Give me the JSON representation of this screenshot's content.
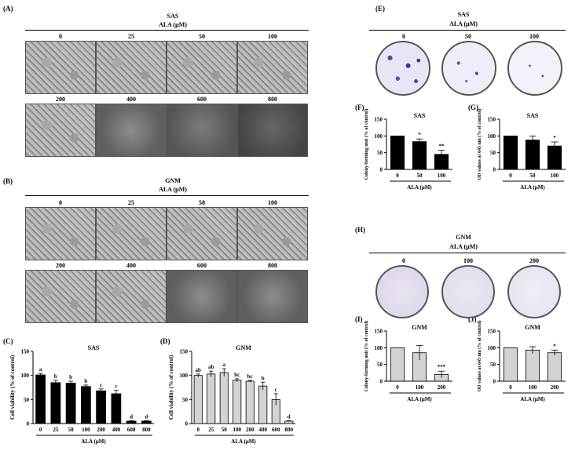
{
  "panels": {
    "A": "(A)",
    "B": "(B)",
    "C": "(C)",
    "D": "(D)",
    "E": "(E)",
    "F": "(F)",
    "G": "(G)",
    "H": "(H)",
    "I": "(I)",
    "J": "(J)"
  },
  "micro": {
    "A": {
      "title": "SAS",
      "subtitle": "ALA (μM)",
      "row1": [
        "0",
        "25",
        "50",
        "100"
      ],
      "row2": [
        "200",
        "400",
        "600",
        "800"
      ]
    },
    "B": {
      "title": "GNM",
      "subtitle": "ALA (μM)",
      "row1": [
        "0",
        "25",
        "50",
        "100"
      ],
      "row2": [
        "200",
        "400",
        "600",
        "800"
      ]
    }
  },
  "colony": {
    "E": {
      "title": "SAS",
      "subtitle": "ALA (μM)",
      "labels": [
        "0",
        "50",
        "100"
      ]
    },
    "H": {
      "title": "GNM",
      "subtitle": "ALA (μM)",
      "labels": [
        "0",
        "100",
        "200"
      ]
    }
  },
  "chart_data": [
    {
      "id": "C",
      "type": "bar",
      "title": "SAS",
      "ylabel": "Cell viability (% of control)",
      "xlabel": "ALA (μM)",
      "categories": [
        "0",
        "25",
        "50",
        "100",
        "200",
        "400",
        "600",
        "800"
      ],
      "values": [
        101,
        85,
        84,
        77,
        68,
        62,
        5,
        5
      ],
      "errors": [
        3,
        5,
        4,
        3,
        4,
        7,
        1,
        1
      ],
      "letters": [
        "a",
        "b",
        "b",
        "b",
        "c",
        "c",
        "d",
        "d"
      ],
      "ylim": [
        0,
        150
      ],
      "yticks": [
        "0",
        "50",
        "100",
        "150"
      ],
      "fill": "#000000"
    },
    {
      "id": "D",
      "type": "bar",
      "title": "GNM",
      "ylabel": "Cell viability (% of control)",
      "xlabel": "ALA (μM)",
      "categories": [
        "0",
        "25",
        "50",
        "100",
        "200",
        "400",
        "600",
        "800"
      ],
      "values": [
        100,
        103,
        106,
        90,
        88,
        78,
        50,
        5
      ],
      "errors": [
        3,
        6,
        8,
        3,
        2,
        8,
        12,
        1
      ],
      "letters": [
        "ab",
        "ab",
        "a",
        "bc",
        "bc",
        "b",
        "c",
        "d"
      ],
      "ylim": [
        0,
        150
      ],
      "yticks": [
        "0",
        "50",
        "100",
        "150"
      ],
      "fill": "#d3d3d3"
    },
    {
      "id": "F",
      "type": "bar",
      "title": "SAS",
      "ylabel": "Colony-forming unit (% of control)",
      "xlabel": "ALA (μM)",
      "categories": [
        "0",
        "50",
        "100"
      ],
      "values": [
        100,
        83,
        45
      ],
      "errors": [
        0,
        8,
        12
      ],
      "letters": [
        "",
        "*",
        "**"
      ],
      "ylim": [
        0,
        150
      ],
      "yticks": [
        "0",
        "50",
        "100",
        "150"
      ],
      "fill": "#000000"
    },
    {
      "id": "G",
      "type": "bar",
      "title": "SAS",
      "ylabel": "OD values at 645 nm (% of control)",
      "xlabel": "ALA (μM)",
      "categories": [
        "0",
        "50",
        "100"
      ],
      "values": [
        100,
        88,
        70
      ],
      "errors": [
        0,
        12,
        12
      ],
      "letters": [
        "",
        "",
        "*"
      ],
      "ylim": [
        0,
        150
      ],
      "yticks": [
        "0",
        "50",
        "100",
        "150"
      ],
      "fill": "#000000"
    },
    {
      "id": "I",
      "type": "bar",
      "title": "GNM",
      "ylabel": "Colony-forming unit (% of control)",
      "xlabel": "ALA (μM)",
      "categories": [
        "0",
        "100",
        "200"
      ],
      "values": [
        100,
        85,
        20
      ],
      "errors": [
        0,
        22,
        10
      ],
      "letters": [
        "",
        "",
        "***"
      ],
      "ylim": [
        0,
        150
      ],
      "yticks": [
        "0",
        "50",
        "100",
        "150"
      ],
      "fill": "#d3d3d3"
    },
    {
      "id": "J",
      "type": "bar",
      "title": "GNM",
      "ylabel": "OD values at 645 nm (% of control)",
      "xlabel": "ALA (μM)",
      "categories": [
        "0",
        "100",
        "200"
      ],
      "values": [
        100,
        93,
        85
      ],
      "errors": [
        0,
        10,
        8
      ],
      "letters": [
        "",
        "",
        "*"
      ],
      "ylim": [
        0,
        150
      ],
      "yticks": [
        "0",
        "50",
        "100",
        "150"
      ],
      "fill": "#d3d3d3"
    }
  ]
}
